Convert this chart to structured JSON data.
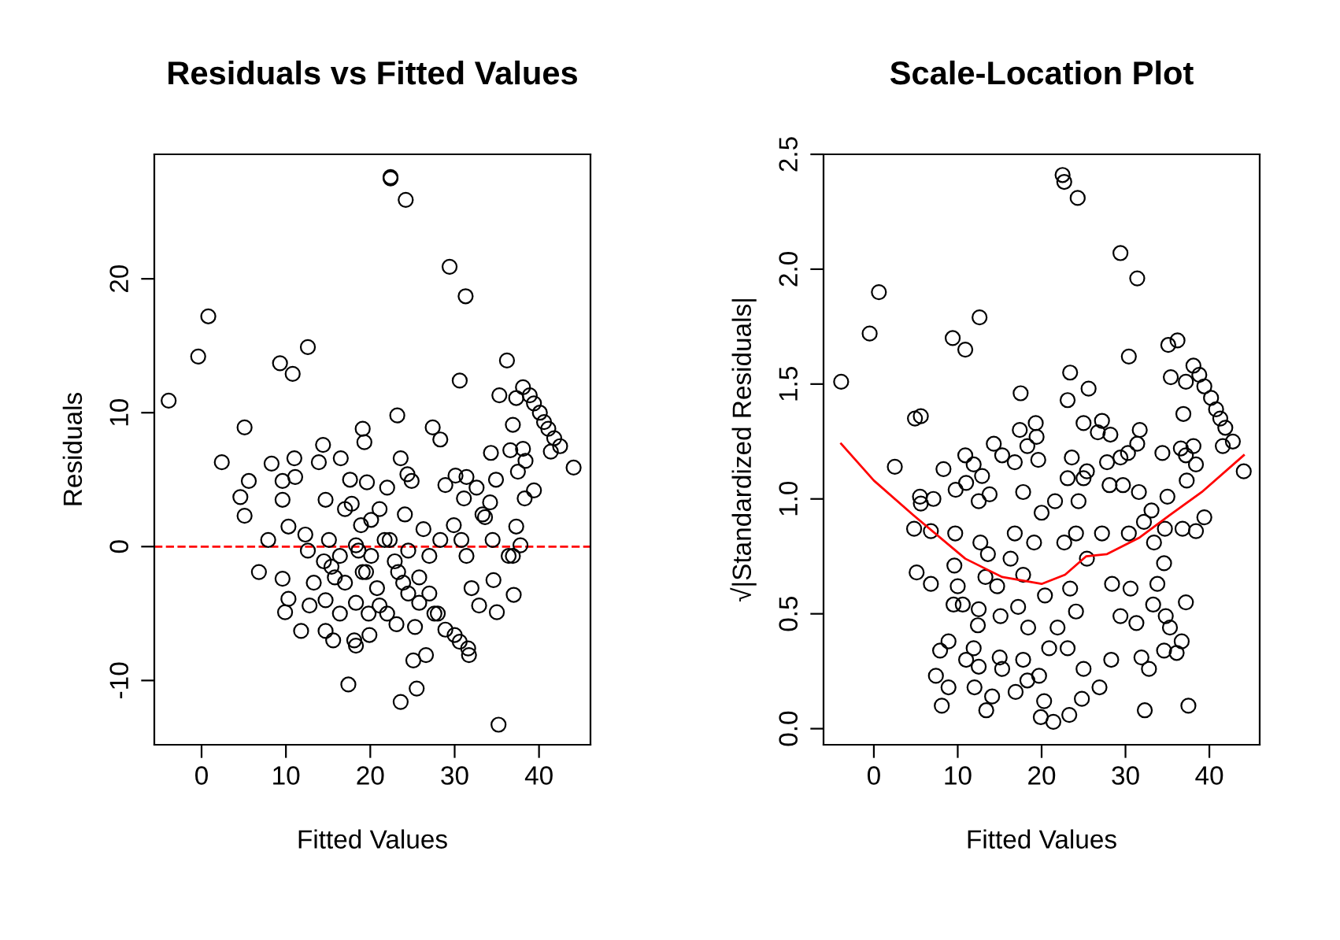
{
  "chart_data": [
    {
      "type": "scatter",
      "title": "Residuals vs Fitted Values",
      "xlabel": "Fitted Values",
      "ylabel": "Residuals",
      "xlim": [
        -5.6,
        46.1
      ],
      "ylim": [
        -14.8,
        29.3
      ],
      "xticks": [
        0,
        10,
        20,
        30,
        40
      ],
      "yticks": [
        -10,
        0,
        10,
        20
      ],
      "marker": "circle",
      "grid": false,
      "legend": false,
      "ref_lines": [
        {
          "axis": "y",
          "value": 0,
          "color": "#ff0000",
          "line_style": "dashed"
        }
      ],
      "series": [
        {
          "color": "#000000",
          "x": [
            -3.9,
            -0.4,
            0.8,
            2.4,
            5.1,
            5.6,
            4.6,
            5.1,
            6.8,
            8.3,
            9.3,
            10.8,
            12.6,
            7.9,
            9.6,
            9.6,
            10.3,
            9.6,
            10.3,
            9.9,
            11,
            11.1,
            11.8,
            12.8,
            12.3,
            13.9,
            14.4,
            14.7,
            14.7,
            14.7,
            15.6,
            16.5,
            17.4,
            17.6,
            17.8,
            16.4,
            15.4,
            17,
            18.1,
            18.3,
            19.1,
            19.3,
            19.6,
            18.9,
            18.6,
            19.5,
            19.9,
            21.1,
            22,
            22.4,
            22.4,
            24.2,
            23.2,
            23.6,
            24.4,
            24.9,
            24.1,
            21.7,
            22.9,
            23.9,
            23.1,
            25.1,
            23.6,
            25.5,
            26.6,
            25.3,
            26.3,
            25.8,
            27,
            28,
            28.9,
            30,
            30.6,
            27.4,
            28.3,
            28.9,
            29.4,
            31.3,
            30.6,
            30.1,
            31.4,
            31.1,
            32.6,
            33.3,
            33.6,
            29.9,
            30.8,
            31.4,
            32,
            31.6,
            31.7,
            32.9,
            34.9,
            34.3,
            34.2,
            34.5,
            34.6,
            35,
            35.2,
            35.3,
            36.2,
            37.3,
            36.9,
            36.6,
            38.1,
            37.5,
            38.4,
            38.1,
            38.9,
            39.4,
            40.1,
            40.6,
            41.1,
            41.8,
            41.4,
            42.5,
            44.1,
            38.3,
            39.4,
            37.3,
            37.8,
            36.4,
            37,
            36.9,
            15.1,
            17,
            18.3,
            20.1,
            21.1,
            22.3,
            23.3,
            24.5,
            25.8,
            20.8,
            18.3,
            16.4,
            19.1,
            15.8,
            14.5,
            13.3,
            12.6,
            27,
            28.3,
            27.6,
            24.5,
            22,
            19.8,
            20.1
          ],
          "values": [
            10.9,
            14.2,
            17.2,
            6.3,
            8.9,
            4.9,
            3.7,
            2.3,
            -1.9,
            6.2,
            13.7,
            12.9,
            14.9,
            0.5,
            3.5,
            4.9,
            1.5,
            -2.4,
            -3.9,
            -4.9,
            6.6,
            5.2,
            -6.3,
            -4.4,
            0.9,
            6.3,
            7.6,
            3.5,
            -4.0,
            -6.3,
            -7.0,
            6.6,
            -10.3,
            5.0,
            3.2,
            -0.7,
            -1.5,
            -2.7,
            -7.0,
            -7.4,
            8.8,
            7.8,
            4.8,
            1.6,
            -0.3,
            -1.9,
            -6.6,
            -4.4,
            4.4,
            27.6,
            27.5,
            25.9,
            9.8,
            6.6,
            5.4,
            4.9,
            2.4,
            0.5,
            -1.1,
            -2.7,
            -5.8,
            -8.5,
            -11.6,
            -10.6,
            -8.1,
            -6.0,
            1.3,
            -2.3,
            -3.5,
            -5.0,
            -6.2,
            -6.6,
            -7.1,
            8.9,
            8.0,
            4.6,
            20.9,
            18.7,
            12.4,
            5.3,
            5.2,
            3.6,
            4.4,
            2.4,
            2.2,
            1.6,
            0.5,
            -0.7,
            -3.1,
            -7.6,
            -8.1,
            -4.4,
            5.0,
            7.0,
            3.3,
            0.5,
            -2.5,
            -4.9,
            -13.3,
            11.3,
            13.9,
            11.1,
            9.1,
            7.2,
            7.3,
            5.6,
            6.4,
            11.9,
            11.3,
            10.7,
            10.0,
            9.3,
            8.8,
            8.1,
            7.1,
            7.5,
            5.9,
            3.6,
            4.2,
            1.5,
            0.1,
            -0.7,
            -3.6,
            -0.7,
            0.5,
            2.8,
            0.1,
            -0.7,
            2.8,
            0.5,
            -1.9,
            -3.5,
            -4.2,
            -3.1,
            -4.2,
            -5.0,
            -1.9,
            -2.3,
            -1.1,
            -2.7,
            -0.3,
            -0.7,
            0.5,
            -5.0,
            -0.3,
            -5.0,
            -5.0,
            2.0
          ]
        }
      ]
    },
    {
      "type": "scatter",
      "title": "Scale-Location Plot",
      "xlabel": "Fitted Values",
      "ylabel": "√|Standardized Residuals|",
      "xlim": [
        -6.0,
        46.0
      ],
      "ylim": [
        -0.07,
        2.5
      ],
      "xticks": [
        0,
        10,
        20,
        30,
        40
      ],
      "yticks": [
        {
          "value": 0,
          "label": "0.0"
        },
        0.5,
        {
          "value": 1,
          "label": "1.0"
        },
        1.5,
        {
          "value": 2,
          "label": "2.0"
        },
        2.5
      ],
      "marker": "circle",
      "grid": false,
      "legend": false,
      "series": [
        {
          "color": "#000000",
          "x": [
            -3.9,
            -0.5,
            0.6,
            2.5,
            4.9,
            5.6,
            5.5,
            5.6,
            7.1,
            4.8,
            5.1,
            6.8,
            6.8,
            8.3,
            8.9,
            7.9,
            7.4,
            8.1,
            8.9,
            9.4,
            10.9,
            12.6,
            9.75,
            9.7,
            9.6,
            10,
            9.5,
            10.6,
            10.9,
            11.0,
            11.9,
            12.5,
            12.7,
            12.5,
            12.4,
            11.9,
            11.0,
            12.0,
            13.4,
            14.1,
            12.5,
            14.3,
            15.3,
            12.9,
            13.8,
            13.6,
            13.3,
            14.7,
            15.1,
            15.0,
            15.3,
            16.9,
            17.5,
            17.4,
            18.3,
            19.3,
            19.4,
            19.6,
            16.8,
            17.8,
            16.8,
            16.3,
            17.8,
            17.2,
            18.4,
            17.8,
            18.3,
            19.9,
            21.4,
            20.3,
            19.7,
            20.9,
            21.9,
            20.4,
            19.1,
            20.0,
            21.6,
            22.5,
            22.7,
            24.3,
            23.4,
            23.1,
            25.6,
            25.0,
            23.6,
            23.1,
            25.0,
            25.4,
            24.4,
            22.7,
            24.1,
            25.4,
            23.4,
            24.1,
            23.1,
            25.0,
            23.3,
            24.8,
            26.9,
            27.2,
            26.7,
            28.2,
            27.8,
            28.1,
            29.4,
            31.4,
            30.4,
            31.7,
            31.4,
            30.3,
            29.4,
            29.7,
            31.6,
            27.2,
            28.4,
            29.4,
            28.3,
            30.6,
            31.3,
            31.9,
            32.3,
            32.8,
            30.4,
            32.2,
            33.4,
            33.1,
            34.6,
            33.8,
            33.3,
            34.8,
            35.3,
            34.6,
            36.1,
            36.7,
            37.5,
            37.2,
            34.4,
            35.0,
            35.1,
            36.2,
            35.4,
            37.2,
            38.1,
            38.8,
            39.4,
            40.2,
            40.8,
            41.3,
            41.9,
            41.6,
            42.8,
            44.1,
            36.9,
            36.6,
            38.1,
            37.2,
            38.4,
            37.3,
            36.8,
            38.4,
            39.4,
            34.7
          ],
          "values": [
            1.51,
            1.72,
            1.9,
            1.14,
            1.35,
            1.36,
            1.01,
            0.98,
            1.0,
            0.87,
            0.68,
            0.63,
            0.86,
            1.13,
            0.38,
            0.34,
            0.23,
            0.1,
            0.18,
            1.7,
            1.65,
            1.79,
            1.04,
            0.85,
            0.71,
            0.62,
            0.54,
            0.54,
            1.19,
            1.07,
            1.15,
            0.99,
            0.81,
            0.52,
            0.45,
            0.35,
            0.3,
            0.18,
            0.08,
            0.14,
            0.27,
            1.24,
            1.19,
            1.1,
            1.02,
            0.76,
            0.66,
            0.62,
            0.49,
            0.31,
            0.26,
            0.16,
            1.46,
            1.3,
            1.23,
            1.33,
            1.27,
            1.17,
            1.16,
            1.03,
            0.85,
            0.74,
            0.67,
            0.53,
            0.44,
            0.3,
            0.21,
            0.05,
            0.03,
            0.12,
            0.23,
            0.35,
            0.44,
            0.58,
            0.81,
            0.94,
            0.99,
            2.41,
            2.38,
            2.31,
            1.55,
            1.43,
            1.48,
            1.33,
            1.18,
            1.09,
            1.09,
            1.12,
            0.99,
            0.81,
            0.85,
            0.74,
            0.61,
            0.51,
            0.35,
            0.26,
            0.06,
            0.13,
            0.18,
            1.34,
            1.29,
            1.28,
            1.16,
            1.06,
            2.07,
            1.96,
            1.62,
            1.3,
            1.24,
            1.2,
            1.18,
            1.06,
            1.03,
            0.85,
            0.63,
            0.49,
            0.3,
            0.61,
            0.46,
            0.31,
            0.08,
            0.26,
            0.85,
            0.9,
            0.81,
            0.95,
            0.72,
            0.63,
            0.54,
            0.49,
            0.44,
            0.34,
            0.33,
            0.38,
            0.1,
            0.55,
            1.2,
            1.01,
            1.67,
            1.69,
            1.53,
            1.51,
            1.58,
            1.54,
            1.49,
            1.44,
            1.39,
            1.35,
            1.31,
            1.23,
            1.25,
            1.12,
            1.37,
            1.22,
            1.23,
            1.19,
            1.15,
            1.08,
            0.87,
            0.86,
            0.92,
            0.87
          ]
        },
        {
          "type": "line",
          "color": "#ff0000",
          "marker": "none",
          "x": [
            -3.9,
            0,
            4.7,
            10.9,
            15.3,
            20,
            22.8,
            25.3,
            27.8,
            31.6,
            35.3,
            39.1,
            44.1
          ],
          "values": [
            1.24,
            1.08,
            0.93,
            0.74,
            0.66,
            0.63,
            0.67,
            0.75,
            0.76,
            0.83,
            0.93,
            1.03,
            1.19
          ]
        }
      ]
    }
  ]
}
